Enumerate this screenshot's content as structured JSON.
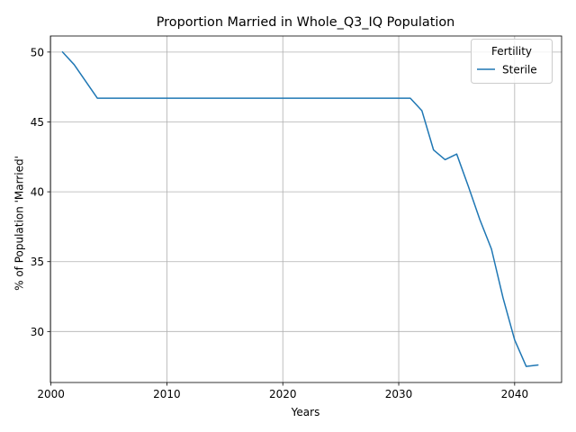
{
  "chart_data": {
    "type": "line",
    "title": "Proportion Married in Whole_Q3_IQ Population",
    "xlabel": "Years",
    "ylabel": "% of Population 'Married'",
    "xlim": [
      1999.95,
      2044.05
    ],
    "ylim": [
      26.35,
      51.15
    ],
    "xticks": [
      2000,
      2010,
      2020,
      2030,
      2040
    ],
    "yticks": [
      30,
      35,
      40,
      45,
      50
    ],
    "grid": true,
    "legend": {
      "title": "Fertility",
      "placement": "top-right"
    },
    "series": [
      {
        "name": "Sterile",
        "color": "#1f77b4",
        "x": [
          2001,
          2002,
          2003,
          2004,
          2005,
          2006,
          2007,
          2008,
          2009,
          2010,
          2011,
          2012,
          2013,
          2014,
          2015,
          2016,
          2017,
          2018,
          2019,
          2020,
          2021,
          2022,
          2023,
          2024,
          2025,
          2026,
          2027,
          2028,
          2029,
          2030,
          2031,
          2032,
          2033,
          2034,
          2035,
          2036,
          2037,
          2038,
          2039,
          2040,
          2041,
          2042
        ],
        "y": [
          50.0,
          49.1,
          47.9,
          46.7,
          46.7,
          46.7,
          46.7,
          46.7,
          46.7,
          46.7,
          46.7,
          46.7,
          46.7,
          46.7,
          46.7,
          46.7,
          46.7,
          46.7,
          46.7,
          46.7,
          46.7,
          46.7,
          46.7,
          46.7,
          46.7,
          46.7,
          46.7,
          46.7,
          46.7,
          46.7,
          46.7,
          45.8,
          43.0,
          42.3,
          42.7,
          40.4,
          38.0,
          35.9,
          32.4,
          29.4,
          27.5,
          27.6
        ]
      }
    ]
  }
}
